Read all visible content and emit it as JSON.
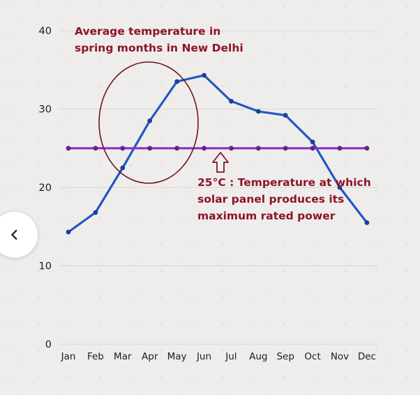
{
  "chart_data": {
    "type": "line",
    "title": "",
    "categories": [
      "Jan",
      "Feb",
      "Mar",
      "Apr",
      "May",
      "Jun",
      "Jul",
      "Aug",
      "Sep",
      "Oct",
      "Nov",
      "Dec"
    ],
    "series": [
      {
        "name": "average-monthly-temperature-new-delhi",
        "color": "#2257c4",
        "marker_color": "#1b3f9c",
        "values": [
          14.3,
          16.8,
          22.5,
          28.5,
          33.5,
          34.3,
          31,
          29.7,
          29.2,
          25.8,
          20,
          15.5
        ]
      },
      {
        "name": "solar-panel-rated-temperature",
        "color": "#8b2fc9",
        "marker_color": "#64218f",
        "values": [
          25,
          25,
          25,
          25,
          25,
          25,
          25,
          25,
          25,
          25,
          25,
          25
        ]
      }
    ],
    "ylim": [
      0,
      40
    ],
    "yticks": [
      0,
      10,
      20,
      30,
      40
    ],
    "grid": true,
    "legend": "none",
    "annotations": {
      "spring_label": {
        "lines": [
          "Average temperature in",
          "spring months in New Delhi"
        ]
      },
      "rated_label": {
        "lines": [
          "25°C : Temperature at which",
          "solar panel produces its",
          "maximum rated power"
        ]
      }
    },
    "colors": {
      "annotation_text": "#8b1528",
      "ellipse": "#6e1322",
      "arrow_stroke": "#7d1326",
      "arrow_fill": "#f2f0ee",
      "gridline": "#d8d6d4",
      "axis_text": "#1c1c1c"
    }
  },
  "nav": {
    "back_button": {
      "icon": "chevron-left"
    }
  }
}
